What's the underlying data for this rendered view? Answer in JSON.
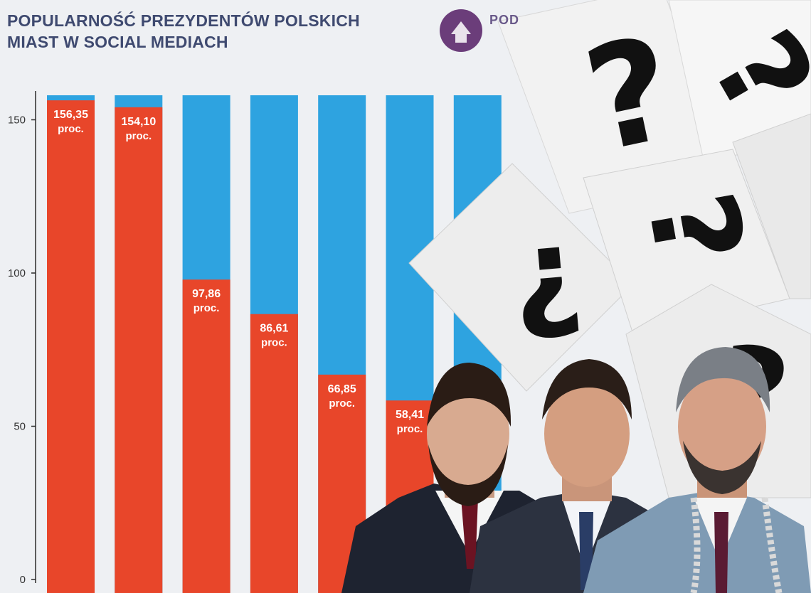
{
  "title_line1": "POPULARNOŚĆ PREZYDENTÓW POLSKICH",
  "title_line2": "MIAST W SOCIAL MEDIACH",
  "logo_text": "POD",
  "colors": {
    "bar_top": "#2ea3e0",
    "bar_bottom": "#e8462a",
    "title": "#3f4a70"
  },
  "chart_data": {
    "type": "bar",
    "title": "POPULARNOŚĆ PREZYDENTÓW POLSKICH MIAST W SOCIAL MEDIACH",
    "xlabel": "",
    "ylabel": "",
    "ylim": [
      0,
      158
    ],
    "yticks": [
      0,
      50,
      100,
      150
    ],
    "grid": false,
    "value_unit_label": "proc.",
    "bars": [
      {
        "value": 156.35,
        "value_label": "156,35"
      },
      {
        "value": 154.1,
        "value_label": "154,10"
      },
      {
        "value": 97.86,
        "value_label": "97,86"
      },
      {
        "value": 86.61,
        "value_label": "86,61"
      },
      {
        "value": 66.85,
        "value_label": "66,85"
      },
      {
        "value": 58.41,
        "value_label": "58,41"
      },
      {
        "value": null,
        "value_label": ""
      }
    ]
  }
}
